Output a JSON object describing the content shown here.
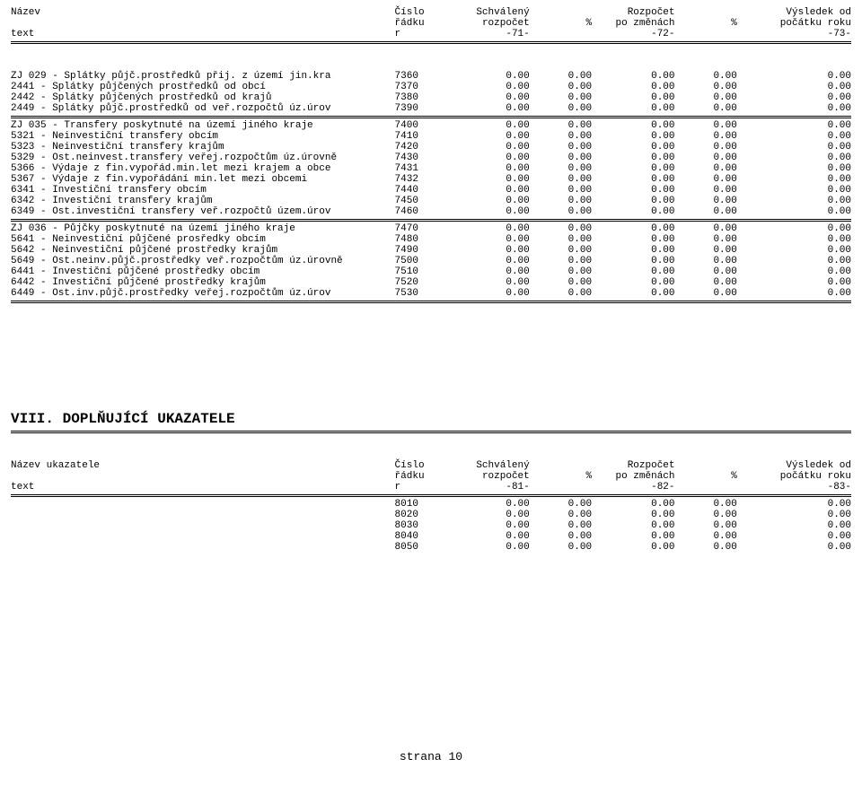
{
  "header1": {
    "r1": {
      "name": "Název",
      "row": "Číslo",
      "v1": "Schválený",
      "p1": "",
      "v2": "Rozpočet",
      "p2": "",
      "v3": "Výsledek od"
    },
    "r2": {
      "name": "",
      "row": "řádku",
      "v1": "rozpočet",
      "p1": "%",
      "v2": "po změnách",
      "p2": "%",
      "v3": "počátku roku"
    },
    "r3": {
      "name": "text",
      "row": "r",
      "v1": "-71-",
      "p1": "",
      "v2": "-72-",
      "p2": "",
      "v3": "-73-"
    }
  },
  "block1": [
    {
      "name": "ZJ 029 - Splátky půjč.prostředků přij. z území jin.kra",
      "row": "7360",
      "v1": "0.00",
      "p1": "0.00",
      "v2": "0.00",
      "p2": "0.00",
      "v3": "0.00"
    },
    {
      "name": "2441 - Splátky půjčených prostředků od obcí",
      "row": "7370",
      "v1": "0.00",
      "p1": "0.00",
      "v2": "0.00",
      "p2": "0.00",
      "v3": "0.00"
    },
    {
      "name": "2442 - Splátky půjčených prostředků od krajů",
      "row": "7380",
      "v1": "0.00",
      "p1": "0.00",
      "v2": "0.00",
      "p2": "0.00",
      "v3": "0.00"
    },
    {
      "name": "2449 - Splátky půjč.prostředků od veř.rozpočtů úz.úrov",
      "row": "7390",
      "v1": "0.00",
      "p1": "0.00",
      "v2": "0.00",
      "p2": "0.00",
      "v3": "0.00"
    }
  ],
  "block2": [
    {
      "name": "ZJ 035 - Transfery poskytnuté na území jiného kraje",
      "row": "7400",
      "v1": "0.00",
      "p1": "0.00",
      "v2": "0.00",
      "p2": "0.00",
      "v3": "0.00"
    },
    {
      "name": "5321 - Neinvestiční transfery obcím",
      "row": "7410",
      "v1": "0.00",
      "p1": "0.00",
      "v2": "0.00",
      "p2": "0.00",
      "v3": "0.00"
    },
    {
      "name": "5323 - Neinvestiční transfery krajům",
      "row": "7420",
      "v1": "0.00",
      "p1": "0.00",
      "v2": "0.00",
      "p2": "0.00",
      "v3": "0.00"
    },
    {
      "name": "5329 - Ost.neinvest.transfery veřej.rozpočtům úz.úrovně",
      "row": "7430",
      "v1": "0.00",
      "p1": "0.00",
      "v2": "0.00",
      "p2": "0.00",
      "v3": "0.00"
    },
    {
      "name": "5366 - Výdaje z fin.vypořád.min.let mezi krajem a obce",
      "row": "7431",
      "v1": "0.00",
      "p1": "0.00",
      "v2": "0.00",
      "p2": "0.00",
      "v3": "0.00"
    },
    {
      "name": "5367 - Výdaje z fin.vypořádání min.let mezi obcemi",
      "row": "7432",
      "v1": "0.00",
      "p1": "0.00",
      "v2": "0.00",
      "p2": "0.00",
      "v3": "0.00"
    },
    {
      "name": "6341 - Investiční transfery obcím",
      "row": "7440",
      "v1": "0.00",
      "p1": "0.00",
      "v2": "0.00",
      "p2": "0.00",
      "v3": "0.00"
    },
    {
      "name": "6342 - Investiční transfery krajům",
      "row": "7450",
      "v1": "0.00",
      "p1": "0.00",
      "v2": "0.00",
      "p2": "0.00",
      "v3": "0.00"
    },
    {
      "name": "6349 - Ost.investiční transfery veř.rozpočtů územ.úrov",
      "row": "7460",
      "v1": "0.00",
      "p1": "0.00",
      "v2": "0.00",
      "p2": "0.00",
      "v3": "0.00"
    }
  ],
  "block3": [
    {
      "name": "ZJ 036 - Půjčky poskytnuté na území jiného kraje",
      "row": "7470",
      "v1": "0.00",
      "p1": "0.00",
      "v2": "0.00",
      "p2": "0.00",
      "v3": "0.00"
    },
    {
      "name": "5641 - Neinvestiční půjčené prosředky obcím",
      "row": "7480",
      "v1": "0.00",
      "p1": "0.00",
      "v2": "0.00",
      "p2": "0.00",
      "v3": "0.00"
    },
    {
      "name": "5642 - Neinvestiční půjčené prostředky krajům",
      "row": "7490",
      "v1": "0.00",
      "p1": "0.00",
      "v2": "0.00",
      "p2": "0.00",
      "v3": "0.00"
    },
    {
      "name": "5649 - Ost.neinv.půjč.prostředky veř.rozpočtům úz.úrovně",
      "row": "7500",
      "v1": "0.00",
      "p1": "0.00",
      "v2": "0.00",
      "p2": "0.00",
      "v3": "0.00"
    },
    {
      "name": "6441 - Investiční půjčené prostředky obcím",
      "row": "7510",
      "v1": "0.00",
      "p1": "0.00",
      "v2": "0.00",
      "p2": "0.00",
      "v3": "0.00"
    },
    {
      "name": "6442 - Investiční půjčené prostředky krajům",
      "row": "7520",
      "v1": "0.00",
      "p1": "0.00",
      "v2": "0.00",
      "p2": "0.00",
      "v3": "0.00"
    },
    {
      "name": "6449 - Ost.inv.půjč.prostředky veřej.rozpočtům úz.úrov",
      "row": "7530",
      "v1": "0.00",
      "p1": "0.00",
      "v2": "0.00",
      "p2": "0.00",
      "v3": "0.00"
    }
  ],
  "section2": {
    "title": "VIII. DOPLŇUJÍCÍ UKAZATELE"
  },
  "header2": {
    "r1": {
      "name": "Název ukazatele",
      "row": "Číslo",
      "v1": "Schválený",
      "p1": "",
      "v2": "Rozpočet",
      "p2": "",
      "v3": "Výsledek od"
    },
    "r2": {
      "name": "",
      "row": "řádku",
      "v1": "rozpočet",
      "p1": "%",
      "v2": "po změnách",
      "p2": "%",
      "v3": "počátku roku"
    },
    "r3": {
      "name": "text",
      "row": "r",
      "v1": "-81-",
      "p1": "",
      "v2": "-82-",
      "p2": "",
      "v3": "-83-"
    }
  },
  "block4": [
    {
      "name": "",
      "row": "8010",
      "v1": "0.00",
      "p1": "0.00",
      "v2": "0.00",
      "p2": "0.00",
      "v3": "0.00"
    },
    {
      "name": "",
      "row": "8020",
      "v1": "0.00",
      "p1": "0.00",
      "v2": "0.00",
      "p2": "0.00",
      "v3": "0.00"
    },
    {
      "name": "",
      "row": "8030",
      "v1": "0.00",
      "p1": "0.00",
      "v2": "0.00",
      "p2": "0.00",
      "v3": "0.00"
    },
    {
      "name": "",
      "row": "8040",
      "v1": "0.00",
      "p1": "0.00",
      "v2": "0.00",
      "p2": "0.00",
      "v3": "0.00"
    },
    {
      "name": "",
      "row": "8050",
      "v1": "0.00",
      "p1": "0.00",
      "v2": "0.00",
      "p2": "0.00",
      "v3": "0.00"
    }
  ],
  "footer": "strana   10"
}
